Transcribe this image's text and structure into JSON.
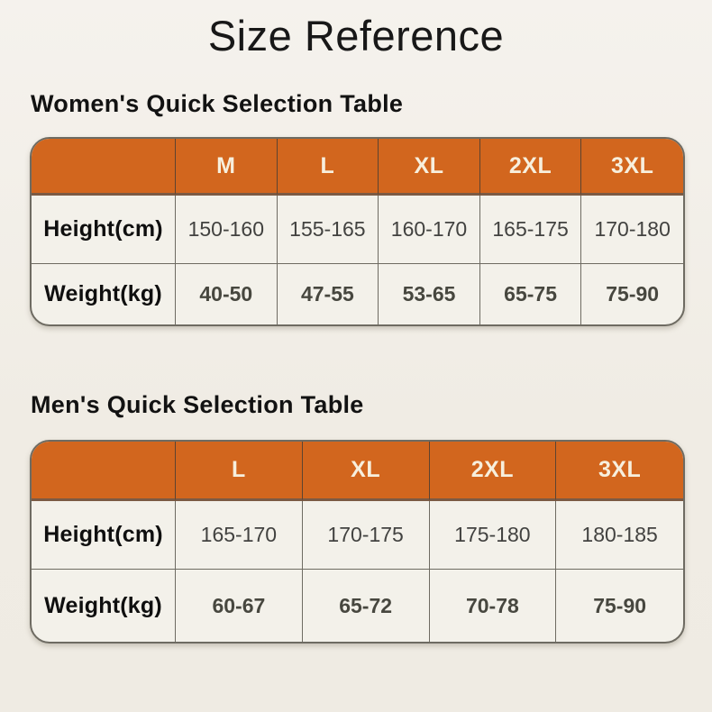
{
  "page": {
    "title": "Size Reference"
  },
  "colors": {
    "background": "#f0ece4",
    "header_orange": "#d2661e",
    "header_underline_brown": "#7b5a44",
    "cell_background": "#f3f1ea",
    "grid_line": "#6e6b62",
    "header_text": "#f7efdd",
    "label_text": "#0f0f0f",
    "value_text": "#424240"
  },
  "women_table": {
    "heading": "Women's Quick Selection Table",
    "sizes": [
      "M",
      "L",
      "XL",
      "2XL",
      "3XL"
    ],
    "rows": [
      {
        "label": "Height(cm)",
        "values": [
          "150-160",
          "155-165",
          "160-170",
          "165-175",
          "170-180"
        ]
      },
      {
        "label": "Weight(kg)",
        "values": [
          "40-50",
          "47-55",
          "53-65",
          "65-75",
          "75-90"
        ]
      }
    ]
  },
  "men_table": {
    "heading": "Men's Quick Selection Table",
    "sizes": [
      "L",
      "XL",
      "2XL",
      "3XL"
    ],
    "rows": [
      {
        "label": "Height(cm)",
        "values": [
          "165-170",
          "170-175",
          "175-180",
          "180-185"
        ]
      },
      {
        "label": "Weight(kg)",
        "values": [
          "60-67",
          "65-72",
          "70-78",
          "75-90"
        ]
      }
    ]
  }
}
